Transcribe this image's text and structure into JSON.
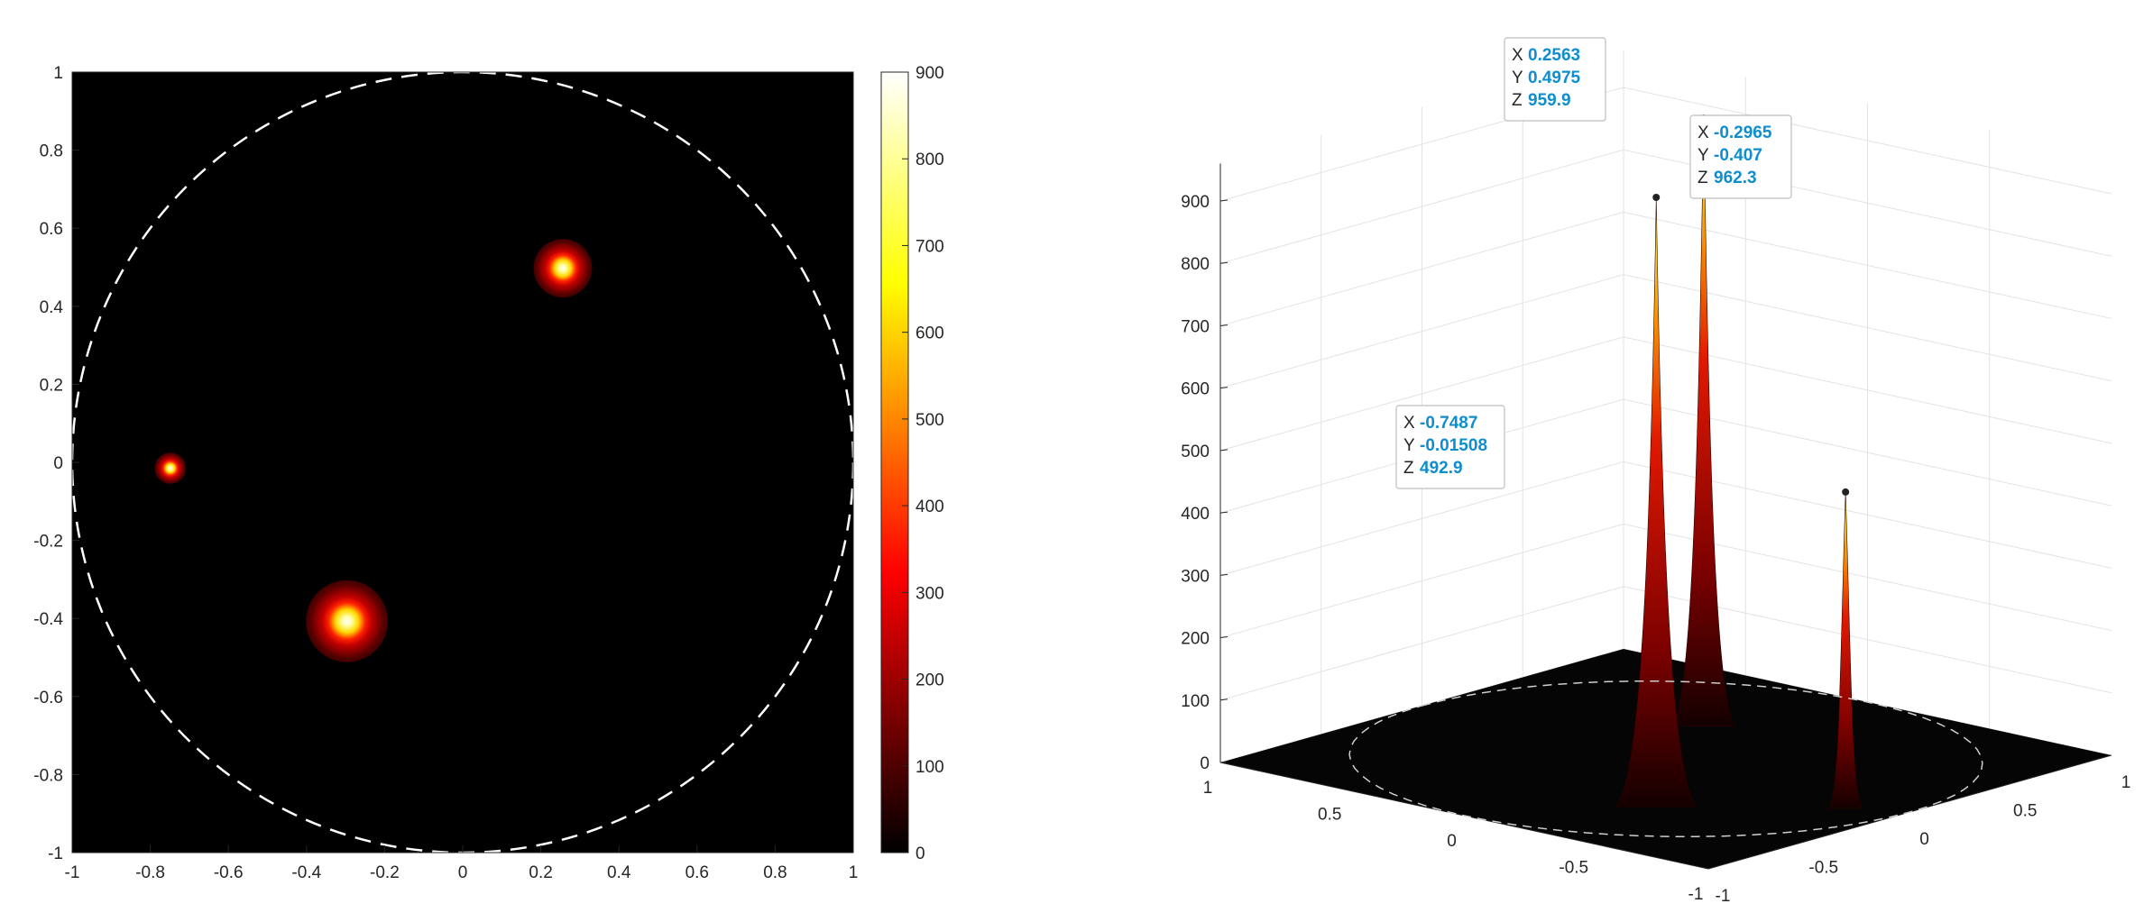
{
  "figure": {
    "background": "#ffffff"
  },
  "chart_data": [
    {
      "type": "heatmap",
      "title": "",
      "xlabel": "",
      "ylabel": "",
      "xlim": [
        -1,
        1
      ],
      "ylim": [
        -1,
        1
      ],
      "xticks": [
        "-1",
        "-0.8",
        "-0.6",
        "-0.4",
        "-0.2",
        "0",
        "0.2",
        "0.4",
        "0.6",
        "0.8",
        "1"
      ],
      "yticks": [
        "-1",
        "-0.8",
        "-0.6",
        "-0.4",
        "-0.2",
        "0",
        "0.2",
        "0.4",
        "0.6",
        "0.8",
        "1"
      ],
      "grid": false,
      "colormap": "hot",
      "background_color": "#000000",
      "peaks": [
        {
          "x": 0.2563,
          "y": 0.4975,
          "z": 959.9
        },
        {
          "x": -0.2965,
          "y": -0.407,
          "z": 962.3
        },
        {
          "x": -0.7487,
          "y": -0.01508,
          "z": 492.9
        }
      ],
      "boundary_circle": {
        "center": [
          0,
          0
        ],
        "radius": 1,
        "style": "dashed",
        "color": "#ffffff"
      },
      "colorbar": {
        "limits": [
          0,
          900
        ],
        "ticks": [
          "0",
          "100",
          "200",
          "300",
          "400",
          "500",
          "600",
          "700",
          "800",
          "900"
        ]
      }
    },
    {
      "type": "surface",
      "title": "",
      "xlabel": "",
      "ylabel": "",
      "zlabel": "",
      "xlim": [
        -1,
        1
      ],
      "ylim": [
        -1,
        1
      ],
      "zlim": [
        0,
        960
      ],
      "xticks": [
        "1",
        "0.5",
        "0",
        "-0.5",
        "-1"
      ],
      "yticks": [
        "-1",
        "-0.5",
        "0",
        "0.5",
        "1"
      ],
      "zticks": [
        "0",
        "100",
        "200",
        "300",
        "400",
        "500",
        "600",
        "700",
        "800",
        "900"
      ],
      "grid": true,
      "colormap": "hot",
      "peaks": [
        {
          "x": 0.2563,
          "y": 0.4975,
          "z": 959.9
        },
        {
          "x": -0.2965,
          "y": -0.407,
          "z": 962.3
        },
        {
          "x": -0.7487,
          "y": -0.01508,
          "z": 492.9
        }
      ],
      "datatips": [
        {
          "x_key": "X",
          "y_key": "Y",
          "z_key": "Z",
          "x": "0.2563",
          "y": "0.4975",
          "z": "959.9"
        },
        {
          "x_key": "X",
          "y_key": "Y",
          "z_key": "Z",
          "x": "-0.2965",
          "y": "-0.407",
          "z": "962.3"
        },
        {
          "x_key": "X",
          "y_key": "Y",
          "z_key": "Z",
          "x": "-0.7487",
          "y": "-0.01508",
          "z": "492.9"
        }
      ]
    }
  ]
}
